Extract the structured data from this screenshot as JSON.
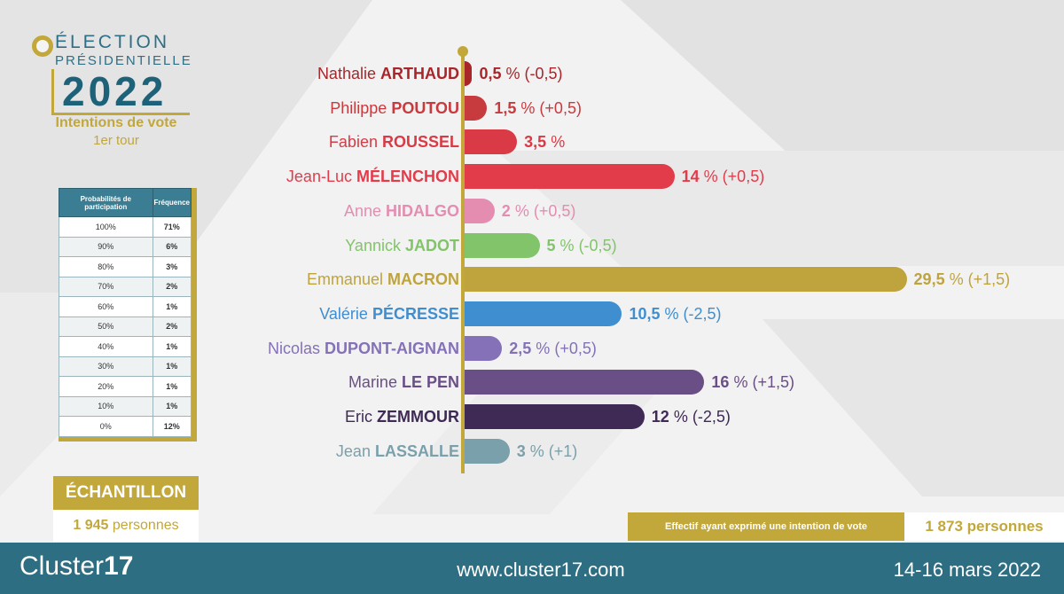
{
  "header": {
    "line1": "ÉLECTION",
    "line2": "PRÉSIDENTIELLE",
    "year": "2022",
    "subtitle1": "Intentions de vote",
    "subtitle2": "1er tour"
  },
  "participation_table": {
    "headers": [
      "Probabilités de participation",
      "Fréquence"
    ],
    "rows": [
      [
        "100%",
        "71%"
      ],
      [
        "90%",
        "6%"
      ],
      [
        "80%",
        "3%"
      ],
      [
        "70%",
        "2%"
      ],
      [
        "60%",
        "1%"
      ],
      [
        "50%",
        "2%"
      ],
      [
        "40%",
        "1%"
      ],
      [
        "30%",
        "1%"
      ],
      [
        "20%",
        "1%"
      ],
      [
        "10%",
        "1%"
      ],
      [
        "0%",
        "12%"
      ]
    ]
  },
  "sample": {
    "title": "ÉCHANTILLON",
    "value": "1 945",
    "unit": "personnes"
  },
  "effectif": {
    "label": "Effectif ayant exprimé une intention de vote",
    "value": "1 873 personnes"
  },
  "footer": {
    "brand_light": "Cluster",
    "brand_bold": "17",
    "url": "www.cluster17.com",
    "date": "14-16 mars 2022"
  },
  "chart_data": {
    "type": "bar",
    "orientation": "horizontal",
    "unit": "%",
    "xlim": [
      0,
      30
    ],
    "candidates": [
      {
        "first": "Nathalie",
        "last": "ARTHAUD",
        "value": 0.5,
        "value_label": "0,5",
        "change": "(-0,5)",
        "color": "#a8262a"
      },
      {
        "first": "Philippe",
        "last": "POUTOU",
        "value": 1.5,
        "value_label": "1,5",
        "change": "(+0,5)",
        "color": "#c73a3e"
      },
      {
        "first": "Fabien",
        "last": "ROUSSEL",
        "value": 3.5,
        "value_label": "3,5",
        "change": "",
        "color": "#d93a45"
      },
      {
        "first": "Jean-Luc",
        "last": "MÉLENCHON",
        "value": 14,
        "value_label": "14",
        "change": "(+0,5)",
        "color": "#e23c4b"
      },
      {
        "first": "Anne",
        "last": "HIDALGO",
        "value": 2,
        "value_label": "2",
        "change": "(+0,5)",
        "color": "#e48db1"
      },
      {
        "first": "Yannick",
        "last": "JADOT",
        "value": 5,
        "value_label": "5",
        "change": "(-0,5)",
        "color": "#82c46a"
      },
      {
        "first": "Emmanuel",
        "last": "MACRON",
        "value": 29.5,
        "value_label": "29,5",
        "change": "(+1,5)",
        "color": "#bfa43d"
      },
      {
        "first": "Valérie",
        "last": "PÉCRESSE",
        "value": 10.5,
        "value_label": "10,5",
        "change": "(-2,5)",
        "color": "#3f8ecf"
      },
      {
        "first": "Nicolas",
        "last": "DUPONT-AIGNAN",
        "value": 2.5,
        "value_label": "2,5",
        "change": "(+0,5)",
        "color": "#8471b8"
      },
      {
        "first": "Marine",
        "last": "LE PEN",
        "value": 16,
        "value_label": "16",
        "change": "(+1,5)",
        "color": "#6a4e86"
      },
      {
        "first": "Eric",
        "last": "ZEMMOUR",
        "value": 12,
        "value_label": "12",
        "change": "(-2,5)",
        "color": "#3e2a55"
      },
      {
        "first": "Jean",
        "last": "LASSALLE",
        "value": 3,
        "value_label": "3",
        "change": "(+1)",
        "color": "#7aa0ab"
      }
    ]
  }
}
